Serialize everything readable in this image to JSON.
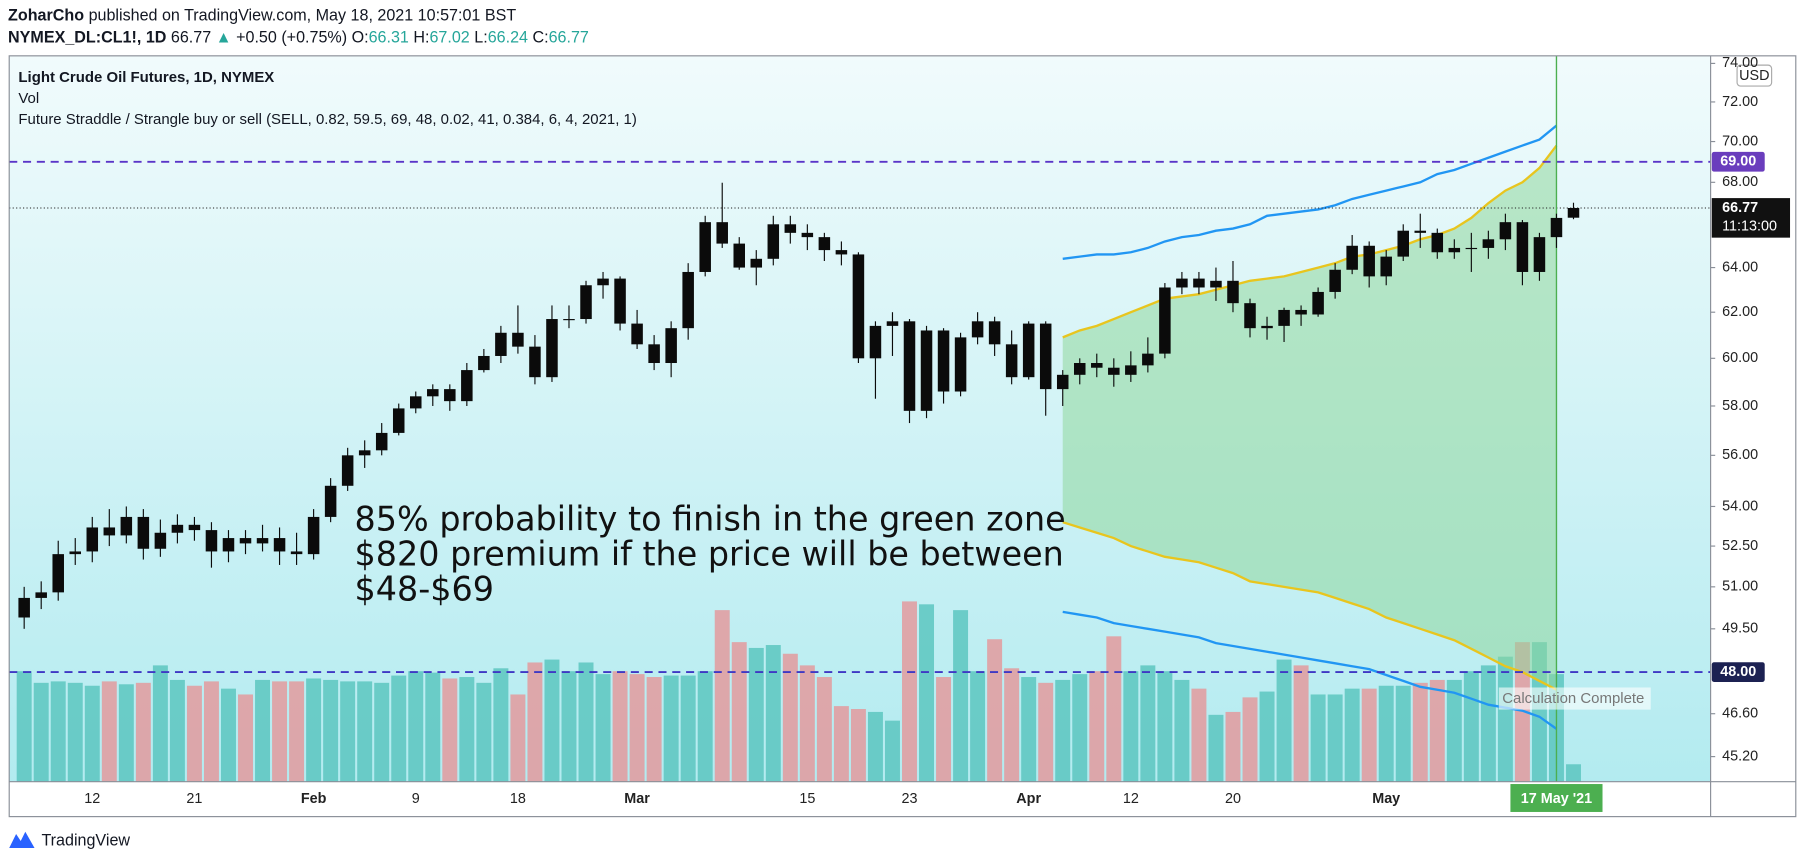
{
  "header": {
    "author": "ZoharCho",
    "published": "published on TradingView.com, May 18, 2021 10:57:01 BST",
    "symbol": "NYMEX_DL:CL1!, 1D",
    "price": "66.77",
    "arrow": "▲",
    "change": "+0.50 (+0.75%)",
    "quote": [
      {
        "label": "O:",
        "value": "66.31"
      },
      {
        "label": "H:",
        "value": "67.02"
      },
      {
        "label": "L:",
        "value": "66.24"
      },
      {
        "label": "C:",
        "value": "66.77"
      }
    ]
  },
  "footer": {
    "brand": "TradingView"
  },
  "chart_data": {
    "type": "candlestick",
    "legend": [
      "Light Crude Oil Futures, 1D, NYMEX",
      "Vol",
      "Future Straddle / Strangle buy or sell (SELL, 0.82, 59.5, 69, 48, 0.02, 41, 0.384, 6, 4, 2021, 1)"
    ],
    "annotation": [
      "85% probability to finish in the green zone",
      "$820 premium if the price will be between",
      "$48-$69"
    ],
    "status": "Calculation Complete",
    "currency": "USD",
    "categories": [
      null,
      null,
      null,
      null,
      "12",
      null,
      null,
      null,
      null,
      null,
      "21",
      null,
      null,
      null,
      null,
      null,
      null,
      "Feb",
      null,
      null,
      null,
      null,
      null,
      "9",
      null,
      null,
      null,
      null,
      null,
      "18",
      null,
      null,
      null,
      null,
      null,
      null,
      "Mar",
      null,
      null,
      null,
      null,
      null,
      null,
      null,
      null,
      null,
      "15",
      null,
      null,
      null,
      null,
      null,
      "23",
      null,
      null,
      null,
      null,
      null,
      null,
      "Apr",
      null,
      null,
      null,
      null,
      null,
      "12",
      null,
      null,
      null,
      null,
      null,
      "20",
      null,
      null,
      null,
      null,
      null,
      null,
      null,
      null,
      "May",
      null,
      null,
      null,
      null,
      null,
      null,
      null,
      null,
      null,
      "17 May '21",
      null
    ],
    "expiry_index": 90,
    "ohlc": [
      [
        49.9,
        51.0,
        49.5,
        50.6
      ],
      [
        50.6,
        51.2,
        50.2,
        50.8
      ],
      [
        50.8,
        52.7,
        50.5,
        52.2
      ],
      [
        52.2,
        52.8,
        51.8,
        52.3
      ],
      [
        52.3,
        53.6,
        51.9,
        53.2
      ],
      [
        53.2,
        53.9,
        52.5,
        52.9
      ],
      [
        52.9,
        54.0,
        52.6,
        53.6
      ],
      [
        53.6,
        53.9,
        52.0,
        52.4
      ],
      [
        52.4,
        53.5,
        52.1,
        53.0
      ],
      [
        53.0,
        53.7,
        52.6,
        53.3
      ],
      [
        53.3,
        53.6,
        52.7,
        53.1
      ],
      [
        53.1,
        53.4,
        51.7,
        52.3
      ],
      [
        52.3,
        53.1,
        51.9,
        52.8
      ],
      [
        52.8,
        53.1,
        52.2,
        52.6
      ],
      [
        52.6,
        53.3,
        52.3,
        52.8
      ],
      [
        52.8,
        53.2,
        51.8,
        52.3
      ],
      [
        52.3,
        53.0,
        51.8,
        52.2
      ],
      [
        52.2,
        53.9,
        52.0,
        53.6
      ],
      [
        53.6,
        55.1,
        53.4,
        54.8
      ],
      [
        54.8,
        56.3,
        54.6,
        56.0
      ],
      [
        56.0,
        56.6,
        55.5,
        56.2
      ],
      [
        56.2,
        57.3,
        56.0,
        56.9
      ],
      [
        56.9,
        58.1,
        56.8,
        57.9
      ],
      [
        57.9,
        58.6,
        57.7,
        58.4
      ],
      [
        58.4,
        58.9,
        58.0,
        58.7
      ],
      [
        58.7,
        58.9,
        57.8,
        58.2
      ],
      [
        58.2,
        59.8,
        58.0,
        59.5
      ],
      [
        59.5,
        60.4,
        59.4,
        60.1
      ],
      [
        60.1,
        61.4,
        59.8,
        61.1
      ],
      [
        61.1,
        62.3,
        60.2,
        60.5
      ],
      [
        60.5,
        61.0,
        58.9,
        59.2
      ],
      [
        59.2,
        62.3,
        59.0,
        61.7
      ],
      [
        61.7,
        62.3,
        61.3,
        61.7
      ],
      [
        61.7,
        63.4,
        61.5,
        63.2
      ],
      [
        63.2,
        63.8,
        62.6,
        63.5
      ],
      [
        63.5,
        63.6,
        61.2,
        61.5
      ],
      [
        61.5,
        62.1,
        60.4,
        60.6
      ],
      [
        60.6,
        61.0,
        59.5,
        59.8
      ],
      [
        59.8,
        61.6,
        59.2,
        61.3
      ],
      [
        61.3,
        64.2,
        60.8,
        63.8
      ],
      [
        63.8,
        66.4,
        63.6,
        66.1
      ],
      [
        66.1,
        67.98,
        64.9,
        65.1
      ],
      [
        65.1,
        65.4,
        63.9,
        64.0
      ],
      [
        64.0,
        64.8,
        63.2,
        64.4
      ],
      [
        64.4,
        66.4,
        64.1,
        66.0
      ],
      [
        66.0,
        66.4,
        65.1,
        65.6
      ],
      [
        65.6,
        66.0,
        64.8,
        65.4
      ],
      [
        65.4,
        65.6,
        64.3,
        64.8
      ],
      [
        64.8,
        65.2,
        64.1,
        64.6
      ],
      [
        64.6,
        64.7,
        59.8,
        60.0
      ],
      [
        60.0,
        61.6,
        58.3,
        61.4
      ],
      [
        61.4,
        62.0,
        60.1,
        61.6
      ],
      [
        61.6,
        61.7,
        57.3,
        57.8
      ],
      [
        57.8,
        61.4,
        57.5,
        61.2
      ],
      [
        61.2,
        61.3,
        58.1,
        58.6
      ],
      [
        58.6,
        61.1,
        58.4,
        60.9
      ],
      [
        60.9,
        62.0,
        60.6,
        61.6
      ],
      [
        61.6,
        61.8,
        60.1,
        60.6
      ],
      [
        60.6,
        61.2,
        58.9,
        59.2
      ],
      [
        59.2,
        61.6,
        59.1,
        61.5
      ],
      [
        61.5,
        61.6,
        57.6,
        58.7
      ],
      [
        58.7,
        59.5,
        58.0,
        59.3
      ],
      [
        59.3,
        60.0,
        58.9,
        59.8
      ],
      [
        59.8,
        60.2,
        59.2,
        59.6
      ],
      [
        59.6,
        60.0,
        58.8,
        59.3
      ],
      [
        59.3,
        60.3,
        59.0,
        59.7
      ],
      [
        59.7,
        60.9,
        59.4,
        60.2
      ],
      [
        60.2,
        63.3,
        60.0,
        63.1
      ],
      [
        63.1,
        63.8,
        62.8,
        63.5
      ],
      [
        63.5,
        63.8,
        62.8,
        63.1
      ],
      [
        63.1,
        64.0,
        62.5,
        63.4
      ],
      [
        63.4,
        64.3,
        62.0,
        62.4
      ],
      [
        62.4,
        62.6,
        60.9,
        61.3
      ],
      [
        61.3,
        61.8,
        60.8,
        61.4
      ],
      [
        61.4,
        62.2,
        60.7,
        62.1
      ],
      [
        62.1,
        62.3,
        61.4,
        61.9
      ],
      [
        61.9,
        63.1,
        61.8,
        62.9
      ],
      [
        62.9,
        64.2,
        62.6,
        63.9
      ],
      [
        63.9,
        65.5,
        63.7,
        65.0
      ],
      [
        65.0,
        65.2,
        63.1,
        63.6
      ],
      [
        63.6,
        64.8,
        63.2,
        64.5
      ],
      [
        64.5,
        66.0,
        64.3,
        65.7
      ],
      [
        65.7,
        66.5,
        64.9,
        65.6
      ],
      [
        65.6,
        65.8,
        64.4,
        64.7
      ],
      [
        64.7,
        65.3,
        64.4,
        64.9
      ],
      [
        64.9,
        65.6,
        63.8,
        64.9
      ],
      [
        64.9,
        65.7,
        64.4,
        65.3
      ],
      [
        65.3,
        66.5,
        64.8,
        66.1
      ],
      [
        66.1,
        66.2,
        63.2,
        63.8
      ],
      [
        63.8,
        65.6,
        63.4,
        65.4
      ],
      [
        65.4,
        66.5,
        64.9,
        66.3
      ],
      [
        66.31,
        67.02,
        66.24,
        66.77
      ]
    ],
    "volume": [
      380,
      340,
      345,
      340,
      330,
      345,
      335,
      340,
      400,
      350,
      330,
      345,
      320,
      300,
      350,
      345,
      345,
      355,
      350,
      345,
      345,
      340,
      365,
      380,
      375,
      355,
      360,
      340,
      390,
      300,
      410,
      420,
      380,
      410,
      370,
      380,
      370,
      360,
      365,
      365,
      380,
      590,
      480,
      460,
      470,
      440,
      400,
      360,
      260,
      250,
      240,
      210,
      620,
      610,
      360,
      590,
      380,
      490,
      390,
      360,
      340,
      350,
      370,
      380,
      500,
      380,
      400,
      380,
      350,
      320,
      230,
      240,
      290,
      310,
      420,
      400,
      300,
      300,
      320,
      320,
      330,
      330,
      340,
      350,
      350,
      380,
      400,
      430,
      480,
      480,
      370,
      60
    ],
    "vlim": [
      0,
      2496
    ],
    "volume_colors": {
      "up": "#5cc6c0",
      "down": "#e39a9e"
    },
    "candle_color": "#0b0b0b",
    "bands": {
      "upper_outer": {
        "color": "#2196f3",
        "values": [
          null,
          null,
          null,
          null,
          null,
          null,
          null,
          null,
          null,
          null,
          null,
          null,
          null,
          null,
          null,
          null,
          null,
          null,
          null,
          null,
          null,
          null,
          null,
          null,
          null,
          null,
          null,
          null,
          null,
          null,
          null,
          null,
          null,
          null,
          null,
          null,
          null,
          null,
          null,
          null,
          null,
          null,
          null,
          null,
          null,
          null,
          null,
          null,
          null,
          null,
          null,
          null,
          null,
          null,
          null,
          null,
          null,
          null,
          null,
          null,
          null,
          64.4,
          64.5,
          64.6,
          64.6,
          64.7,
          64.9,
          65.2,
          65.4,
          65.5,
          65.7,
          65.8,
          66.0,
          66.4,
          66.5,
          66.6,
          66.7,
          66.9,
          67.2,
          67.4,
          67.6,
          67.8,
          68.0,
          68.4,
          68.6,
          68.9,
          69.2,
          69.5,
          69.8,
          70.1,
          70.8,
          null
        ]
      },
      "upper": {
        "color": "#e8c51e",
        "values": [
          null,
          null,
          null,
          null,
          null,
          null,
          null,
          null,
          null,
          null,
          null,
          null,
          null,
          null,
          null,
          null,
          null,
          null,
          null,
          null,
          null,
          null,
          null,
          null,
          null,
          null,
          null,
          null,
          null,
          null,
          null,
          null,
          null,
          null,
          null,
          null,
          null,
          null,
          null,
          null,
          null,
          null,
          null,
          null,
          null,
          null,
          null,
          null,
          null,
          null,
          null,
          null,
          null,
          null,
          null,
          null,
          null,
          null,
          null,
          null,
          null,
          60.9,
          61.2,
          61.4,
          61.7,
          62.0,
          62.3,
          62.6,
          62.7,
          62.8,
          63.0,
          63.2,
          63.4,
          63.5,
          63.6,
          63.8,
          64.0,
          64.2,
          64.5,
          64.6,
          64.8,
          65.0,
          65.3,
          65.5,
          65.8,
          66.3,
          67.0,
          67.6,
          68.0,
          68.7,
          69.8,
          null
        ]
      },
      "lower": {
        "color": "#e8c51e",
        "values": [
          null,
          null,
          null,
          null,
          null,
          null,
          null,
          null,
          null,
          null,
          null,
          null,
          null,
          null,
          null,
          null,
          null,
          null,
          null,
          null,
          null,
          null,
          null,
          null,
          null,
          null,
          null,
          null,
          null,
          null,
          null,
          null,
          null,
          null,
          null,
          null,
          null,
          null,
          null,
          null,
          null,
          null,
          null,
          null,
          null,
          null,
          null,
          null,
          null,
          null,
          null,
          null,
          null,
          null,
          null,
          null,
          null,
          null,
          null,
          null,
          null,
          53.4,
          53.2,
          53.0,
          52.8,
          52.5,
          52.3,
          52.1,
          52.0,
          51.9,
          51.7,
          51.5,
          51.2,
          51.1,
          51.0,
          50.9,
          50.8,
          50.6,
          50.4,
          50.2,
          49.9,
          49.7,
          49.5,
          49.3,
          49.1,
          48.8,
          48.5,
          48.2,
          48.0,
          47.7,
          47.4,
          null
        ]
      },
      "lower_outer": {
        "color": "#2196f3",
        "values": [
          null,
          null,
          null,
          null,
          null,
          null,
          null,
          null,
          null,
          null,
          null,
          null,
          null,
          null,
          null,
          null,
          null,
          null,
          null,
          null,
          null,
          null,
          null,
          null,
          null,
          null,
          null,
          null,
          null,
          null,
          null,
          null,
          null,
          null,
          null,
          null,
          null,
          null,
          null,
          null,
          null,
          null,
          null,
          null,
          null,
          null,
          null,
          null,
          null,
          null,
          null,
          null,
          null,
          null,
          null,
          null,
          null,
          null,
          null,
          null,
          null,
          50.1,
          50.0,
          49.9,
          49.7,
          49.6,
          49.5,
          49.4,
          49.3,
          49.2,
          49.0,
          48.9,
          48.8,
          48.7,
          48.6,
          48.5,
          48.4,
          48.3,
          48.2,
          48.1,
          47.9,
          47.7,
          47.5,
          47.4,
          47.3,
          47.1,
          46.9,
          46.8,
          46.7,
          46.5,
          46.1,
          null
        ]
      }
    },
    "zone_color": "#8fd79c",
    "hlines": [
      {
        "value": 69,
        "label": "69.00",
        "color": "#5a35c8",
        "label_bg": "#6a3dbd"
      },
      {
        "value": 48,
        "label": "48.00",
        "color": "#3f38c4",
        "label_bg": "#1c2152"
      }
    ],
    "last": {
      "value": 66.77,
      "label": "66.77",
      "countdown": "11:13:00"
    },
    "log": true,
    "grid": false,
    "ylim": [
      44.4,
      74.4
    ],
    "yticks": [
      {
        "value": 45.2,
        "label": "45.20"
      },
      {
        "value": 46.6,
        "label": "46.60"
      },
      {
        "value": 49.5,
        "label": "49.50"
      },
      {
        "value": 51,
        "label": "51.00"
      },
      {
        "value": 52.5,
        "label": "52.50"
      },
      {
        "value": 54,
        "label": "54.00"
      },
      {
        "value": 56,
        "label": "56.00"
      },
      {
        "value": 58,
        "label": "58.00"
      },
      {
        "value": 60,
        "label": "60.00"
      },
      {
        "value": 62,
        "label": "62.00"
      },
      {
        "value": 64,
        "label": "64.00"
      },
      {
        "value": 68,
        "label": "68.00"
      },
      {
        "value": 70,
        "label": "70.00"
      },
      {
        "value": 72,
        "label": "72.00"
      },
      {
        "value": 74,
        "label": "74.00"
      }
    ]
  }
}
